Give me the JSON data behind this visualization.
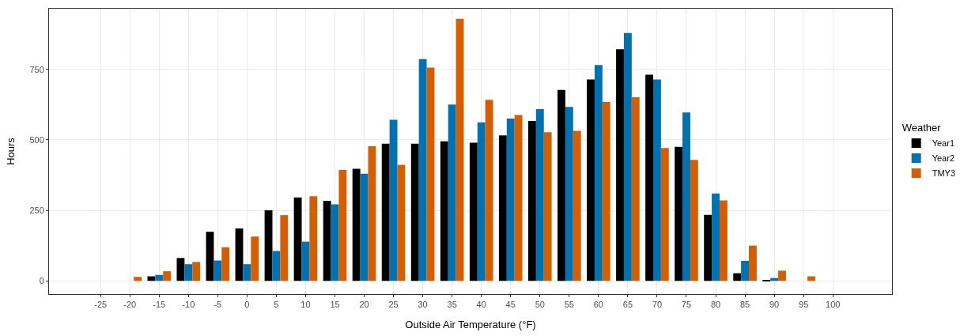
{
  "chart_data": {
    "type": "bar",
    "xlabel": "Outside Air Temperature (°F)",
    "ylabel": "Hours",
    "legend_title": "Weather",
    "x": [
      -20,
      -15,
      -10,
      -5,
      0,
      5,
      10,
      15,
      20,
      25,
      30,
      35,
      40,
      45,
      50,
      55,
      60,
      65,
      70,
      75,
      80,
      85,
      90,
      95
    ],
    "series": [
      {
        "name": "Year1",
        "color": "#000000",
        "values": [
          null,
          16,
          81,
          174,
          186,
          250,
          296,
          284,
          397,
          486,
          486,
          495,
          490,
          516,
          567,
          677,
          714,
          821,
          731,
          475,
          234,
          27,
          3,
          null
        ]
      },
      {
        "name": "Year2",
        "color": "#0072b2",
        "values": [
          null,
          21,
          59,
          72,
          59,
          106,
          139,
          271,
          380,
          571,
          786,
          625,
          562,
          575,
          609,
          617,
          765,
          879,
          714,
          597,
          310,
          71,
          10,
          null
        ]
      },
      {
        "name": "TMY3",
        "color": "#d55e00",
        "values": [
          14,
          34,
          67,
          119,
          157,
          233,
          300,
          393,
          477,
          411,
          756,
          929,
          642,
          588,
          527,
          532,
          634,
          651,
          471,
          429,
          285,
          125,
          36,
          16
        ]
      }
    ],
    "xlim": [
      -33.8,
      110.1
    ],
    "xticks": [
      -25,
      -20,
      -15,
      -10,
      -5,
      0,
      5,
      10,
      15,
      20,
      25,
      30,
      35,
      40,
      45,
      50,
      55,
      60,
      65,
      70,
      75,
      80,
      85,
      90,
      95,
      100
    ],
    "ylim": [
      -47,
      965
    ],
    "yticks": [
      0,
      250,
      500,
      750
    ],
    "grid": true,
    "legend": "right"
  }
}
